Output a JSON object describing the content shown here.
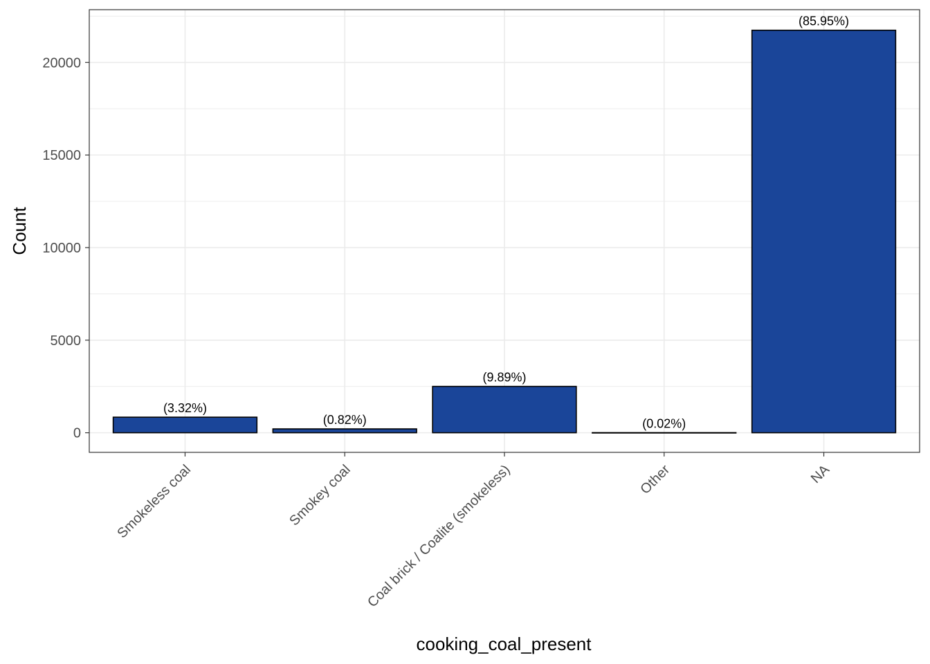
{
  "chart_data": {
    "type": "bar",
    "title": "",
    "xlabel": "cooking_coal_present",
    "ylabel": "Count",
    "categories": [
      "Smokeless coal",
      "Smokey coal",
      "Coal brick / Coalite (smokeless)",
      "Other",
      "NA"
    ],
    "values": [
      840,
      207,
      2502,
      5,
      21740
    ],
    "labels": [
      "(3.32%)",
      "(0.82%)",
      "(9.89%)",
      "(0.02%)",
      "(85.95%)"
    ],
    "yticks": [
      0,
      5000,
      10000,
      15000,
      20000
    ],
    "ylim": [
      -1060,
      22850
    ],
    "grid": true,
    "legend": "none",
    "colors": {
      "bar_fill": "#1a4599",
      "bar_stroke": "#000000",
      "grid": "#ebebeb",
      "panel_border": "#333333"
    }
  }
}
